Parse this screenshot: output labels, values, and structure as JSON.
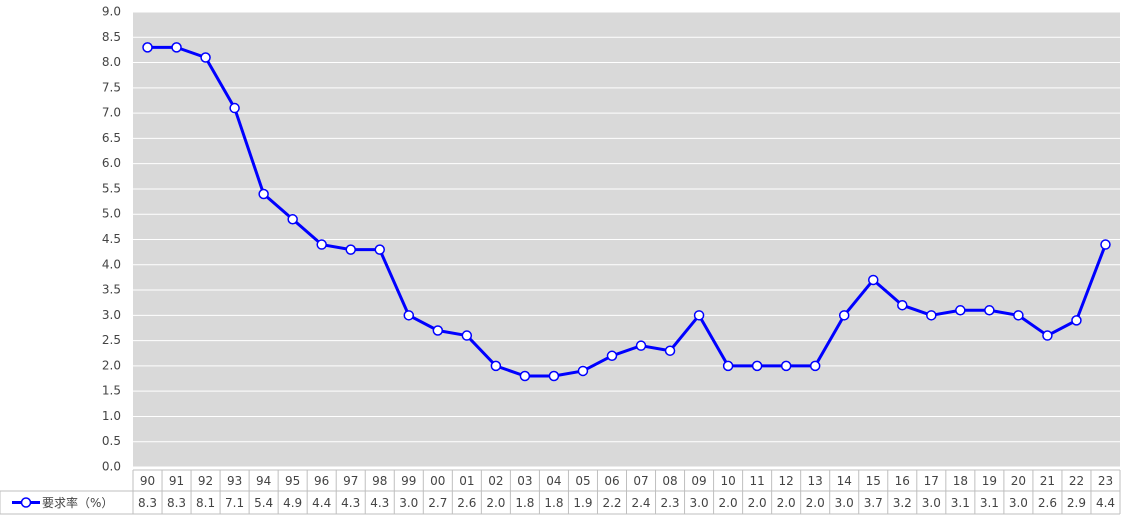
{
  "chart_data": {
    "type": "line",
    "categories": [
      "90",
      "91",
      "92",
      "93",
      "94",
      "95",
      "96",
      "97",
      "98",
      "99",
      "00",
      "01",
      "02",
      "03",
      "04",
      "05",
      "06",
      "07",
      "08",
      "09",
      "10",
      "11",
      "12",
      "13",
      "14",
      "15",
      "16",
      "17",
      "18",
      "19",
      "20",
      "21",
      "22",
      "23"
    ],
    "series": [
      {
        "name": "要求率（%）",
        "color": "#0000ff",
        "values": [
          8.3,
          8.3,
          8.1,
          7.1,
          5.4,
          4.9,
          4.4,
          4.3,
          4.3,
          3.0,
          2.7,
          2.6,
          2.0,
          1.8,
          1.8,
          1.9,
          2.2,
          2.4,
          2.3,
          3.0,
          2.0,
          2.0,
          2.0,
          2.0,
          3.0,
          3.7,
          3.2,
          3.0,
          3.1,
          3.1,
          3.0,
          2.6,
          2.9,
          4.4
        ],
        "value_labels": [
          "8.3",
          "8.3",
          "8.1",
          "7.1",
          "5.4",
          "4.9",
          "4.4",
          "4.3",
          "4.3",
          "3.0",
          "2.7",
          "2.6",
          "2.0",
          "1.8",
          "1.8",
          "1.9",
          "2.2",
          "2.4",
          "2.3",
          "3.0",
          "2.0",
          "2.0",
          "2.0",
          "2.0",
          "3.0",
          "3.7",
          "3.2",
          "3.0",
          "3.1",
          "3.1",
          "3.0",
          "2.6",
          "2.9",
          "4.4"
        ]
      }
    ],
    "ylim": [
      0,
      9
    ],
    "yticks": [
      {
        "value": 0,
        "label": "0.0"
      },
      0.5,
      {
        "value": 1,
        "label": "1.0"
      },
      1.5,
      {
        "value": 2,
        "label": "2.0"
      },
      2.5,
      {
        "value": 3,
        "label": "3.0"
      },
      3.5,
      {
        "value": 4,
        "label": "4.0"
      },
      4.5,
      {
        "value": 5,
        "label": "5.0"
      },
      5.5,
      {
        "value": 6,
        "label": "6.0"
      },
      6.5,
      {
        "value": 7,
        "label": "7.0"
      },
      7.5,
      {
        "value": 8,
        "label": "8.0"
      },
      8.5,
      {
        "value": 9,
        "label": "9.0"
      }
    ],
    "grid": true
  }
}
